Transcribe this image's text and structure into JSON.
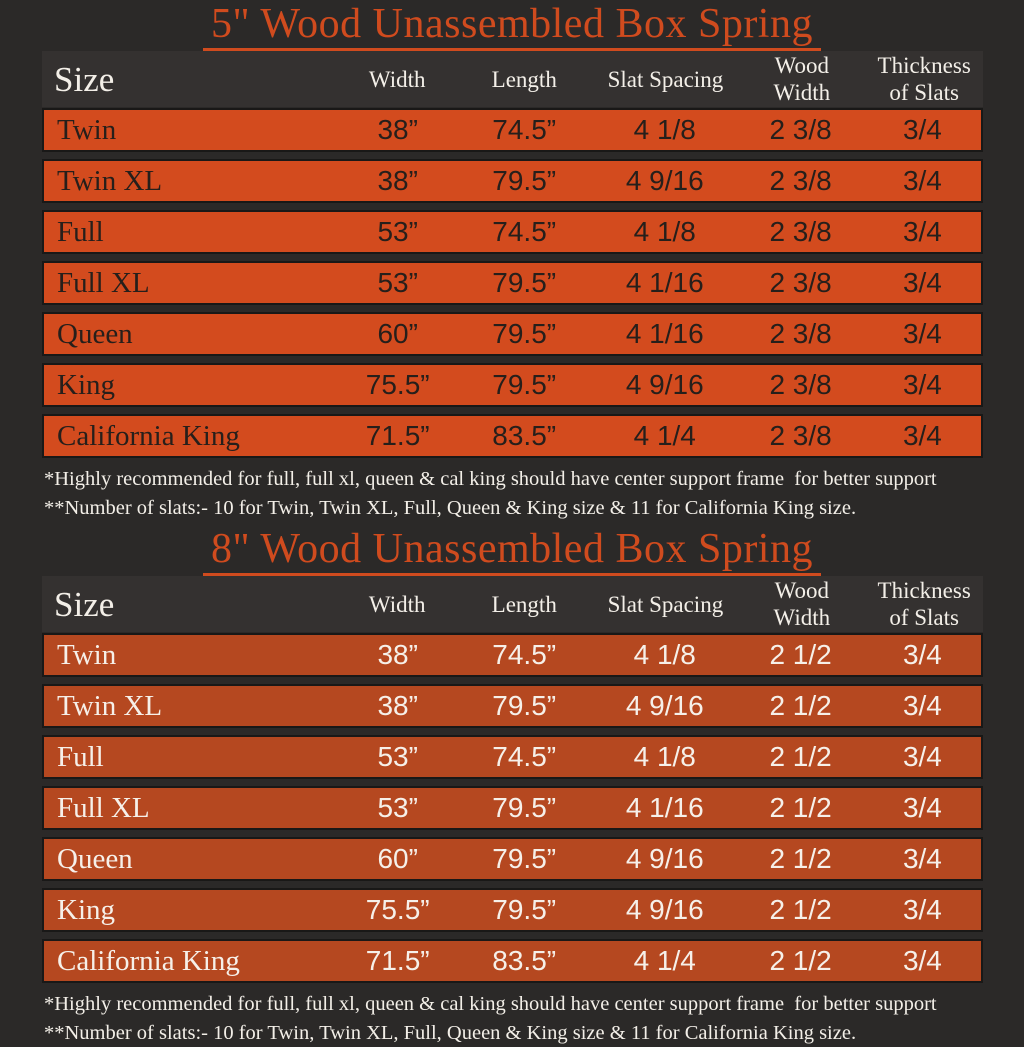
{
  "page": {
    "background": "#2b2928"
  },
  "tables": [
    {
      "title": "5\" Wood Unassembled Box Spring",
      "columns": [
        "Size",
        "Width",
        "Length",
        "Slat Spacing",
        "Wood Width",
        "Thickness of Slats"
      ],
      "rows": [
        [
          "Twin",
          "38”",
          "74.5”",
          "4 1/8",
          "2 3/8",
          "3/4"
        ],
        [
          "Twin XL",
          "38”",
          "79.5”",
          "4 9/16",
          "2 3/8",
          "3/4"
        ],
        [
          "Full",
          "53”",
          "74.5”",
          "4 1/8",
          "2 3/8",
          "3/4"
        ],
        [
          "Full XL",
          "53”",
          "79.5”",
          "4 1/16",
          "2 3/8",
          "3/4"
        ],
        [
          "Queen",
          "60”",
          "79.5”",
          "4 1/16",
          "2 3/8",
          "3/4"
        ],
        [
          "King",
          "75.5”",
          "79.5”",
          "4 9/16",
          "2 3/8",
          "3/4"
        ],
        [
          "California King",
          "71.5”",
          "83.5”",
          "4 1/4",
          "2 3/8",
          "3/4"
        ]
      ],
      "footnotes": [
        "*Highly recommended for full, full xl, queen & cal king should have center support frame  for better support",
        "**Number of slats:- 10 for Twin, Twin XL, Full, Queen & King size & 11 for California King size."
      ],
      "colors": {
        "title": "#d04b1e",
        "row_bg": "#d34b1e",
        "row_text": "#261f1b",
        "header_bg": "#343130",
        "header_text": "#f3efe8"
      }
    },
    {
      "title": "8\" Wood Unassembled Box Spring",
      "columns": [
        "Size",
        "Width",
        "Length",
        "Slat Spacing",
        "Wood Width",
        "Thickness of Slats"
      ],
      "rows": [
        [
          "Twin",
          "38”",
          "74.5”",
          "4 1/8",
          "2 1/2",
          "3/4"
        ],
        [
          "Twin XL",
          "38”",
          "79.5”",
          "4 9/16",
          "2 1/2",
          "3/4"
        ],
        [
          "Full",
          "53”",
          "74.5”",
          "4 1/8",
          "2 1/2",
          "3/4"
        ],
        [
          "Full XL",
          "53”",
          "79.5”",
          "4 1/16",
          "2 1/2",
          "3/4"
        ],
        [
          "Queen",
          "60”",
          "79.5”",
          "4 9/16",
          "2 1/2",
          "3/4"
        ],
        [
          "King",
          "75.5”",
          "79.5”",
          "4 9/16",
          "2 1/2",
          "3/4"
        ],
        [
          "California King",
          "71.5”",
          "83.5”",
          "4 1/4",
          "2 1/2",
          "3/4"
        ]
      ],
      "footnotes": [
        "*Highly recommended for full, full xl, queen & cal king should have center support frame  for better support",
        "**Number of slats:- 10 for Twin, Twin XL, Full, Queen & King size & 11 for California King size."
      ],
      "colors": {
        "title": "#d04b1e",
        "row_bg": "#b54820",
        "row_text": "#f6f0e9",
        "header_bg": "#343130",
        "header_text": "#f3efe8"
      }
    }
  ]
}
